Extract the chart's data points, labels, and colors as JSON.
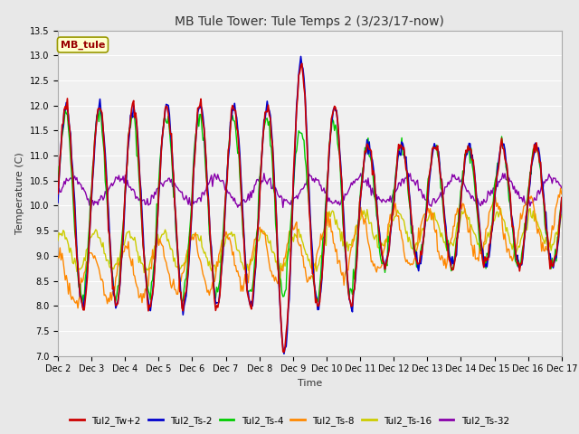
{
  "title": "MB Tule Tower: Tule Temps 2 (3/23/17-now)",
  "xlabel": "Time",
  "ylabel": "Temperature (C)",
  "ylim": [
    7.0,
    13.5
  ],
  "yticks": [
    7.0,
    7.5,
    8.0,
    8.5,
    9.0,
    9.5,
    10.0,
    10.5,
    11.0,
    11.5,
    12.0,
    12.5,
    13.0,
    13.5
  ],
  "legend_label": "MB_tule",
  "series_colors": {
    "Tul2_Tw+2": "#cc0000",
    "Tul2_Ts-2": "#0000cc",
    "Tul2_Ts-4": "#00cc00",
    "Tul2_Ts-8": "#ff8800",
    "Tul2_Ts-16": "#cccc00",
    "Tul2_Ts-32": "#8800aa"
  },
  "background_color": "#e8e8e8",
  "plot_bg_color": "#f0f0f0",
  "figwidth": 6.4,
  "figheight": 4.8,
  "dpi": 100
}
